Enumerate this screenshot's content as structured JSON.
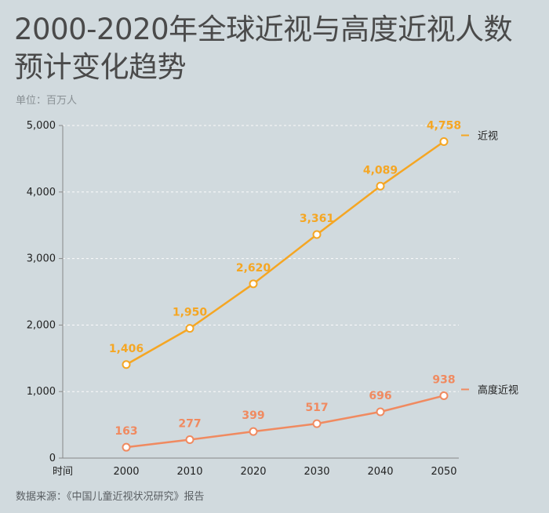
{
  "chart_data": {
    "type": "line",
    "title": "2000-2020年全球近视与高度近视人数预计变化趋势",
    "subtitle": "单位：百万人",
    "xlabel": "时间",
    "ylabel": "",
    "x": [
      2000,
      2010,
      2020,
      2030,
      2040,
      2050
    ],
    "x_tick_labels": [
      "2000",
      "2010",
      "2020",
      "2030",
      "2040",
      "2050"
    ],
    "ylim": [
      0,
      5000
    ],
    "y_ticks": [
      0,
      1000,
      2000,
      3000,
      4000,
      5000
    ],
    "y_tick_labels": [
      "0",
      "1,000",
      "2,000",
      "3,000",
      "4,000",
      "5,000"
    ],
    "grid": true,
    "series": [
      {
        "name": "近视",
        "color": "#f5a623",
        "values": [
          1406,
          1950,
          2620,
          3361,
          4089,
          4758
        ],
        "value_labels": [
          "1,406",
          "1,950",
          "2,620",
          "3,361",
          "4,089",
          "4,758"
        ]
      },
      {
        "name": "高度近视",
        "color": "#f08a60",
        "values": [
          163,
          277,
          399,
          517,
          696,
          938
        ],
        "value_labels": [
          "163",
          "277",
          "399",
          "517",
          "696",
          "938"
        ]
      }
    ],
    "legend_position": "right, at line ends",
    "source": "数据来源：《中国儿童近视状况研究》报告"
  }
}
